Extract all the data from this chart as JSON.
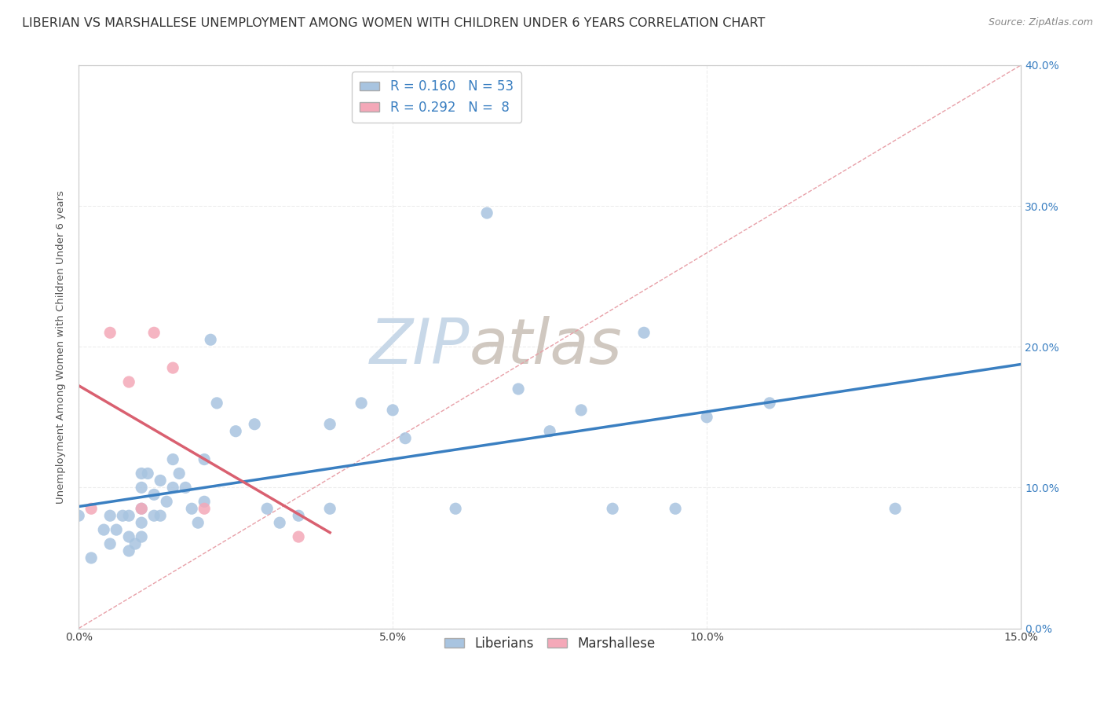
{
  "title": "LIBERIAN VS MARSHALLESE UNEMPLOYMENT AMONG WOMEN WITH CHILDREN UNDER 6 YEARS CORRELATION CHART",
  "source": "Source: ZipAtlas.com",
  "xlim": [
    0.0,
    0.15
  ],
  "ylim": [
    0.0,
    0.4
  ],
  "liberian_R": 0.16,
  "liberian_N": 53,
  "marshallese_R": 0.292,
  "marshallese_N": 8,
  "liberian_color": "#a8c4e0",
  "marshallese_color": "#f4a8b8",
  "trend_liberian_color": "#3a7fc1",
  "trend_marshallese_color": "#d96070",
  "diagonal_color": "#e8a0a8",
  "watermark_color_zip": "#c8d8e8",
  "watermark_color_atlas": "#d0c8c0",
  "liberian_x": [
    0.0,
    0.002,
    0.004,
    0.005,
    0.005,
    0.006,
    0.007,
    0.008,
    0.008,
    0.008,
    0.009,
    0.01,
    0.01,
    0.01,
    0.01,
    0.01,
    0.011,
    0.012,
    0.012,
    0.013,
    0.013,
    0.014,
    0.015,
    0.015,
    0.016,
    0.017,
    0.018,
    0.019,
    0.02,
    0.02,
    0.021,
    0.022,
    0.025,
    0.028,
    0.03,
    0.032,
    0.035,
    0.04,
    0.04,
    0.045,
    0.05,
    0.052,
    0.06,
    0.065,
    0.07,
    0.075,
    0.08,
    0.085,
    0.09,
    0.095,
    0.1,
    0.11,
    0.13
  ],
  "liberian_y": [
    0.08,
    0.05,
    0.07,
    0.08,
    0.06,
    0.07,
    0.08,
    0.08,
    0.065,
    0.055,
    0.06,
    0.11,
    0.1,
    0.085,
    0.075,
    0.065,
    0.11,
    0.095,
    0.08,
    0.105,
    0.08,
    0.09,
    0.12,
    0.1,
    0.11,
    0.1,
    0.085,
    0.075,
    0.12,
    0.09,
    0.205,
    0.16,
    0.14,
    0.145,
    0.085,
    0.075,
    0.08,
    0.145,
    0.085,
    0.16,
    0.155,
    0.135,
    0.085,
    0.295,
    0.17,
    0.14,
    0.155,
    0.085,
    0.21,
    0.085,
    0.15,
    0.16,
    0.085
  ],
  "marshallese_x": [
    0.002,
    0.005,
    0.008,
    0.01,
    0.012,
    0.015,
    0.02,
    0.035
  ],
  "marshallese_y": [
    0.085,
    0.21,
    0.175,
    0.085,
    0.21,
    0.185,
    0.085,
    0.065
  ],
  "background_color": "#ffffff",
  "grid_color": "#e8e8e8",
  "title_fontsize": 11.5,
  "axis_label_fontsize": 9.5,
  "tick_fontsize": 10,
  "legend_fontsize": 12,
  "watermark_text_zip": "ZIP",
  "watermark_text_atlas": "atlas",
  "ylabel": "Unemployment Among Women with Children Under 6 years"
}
